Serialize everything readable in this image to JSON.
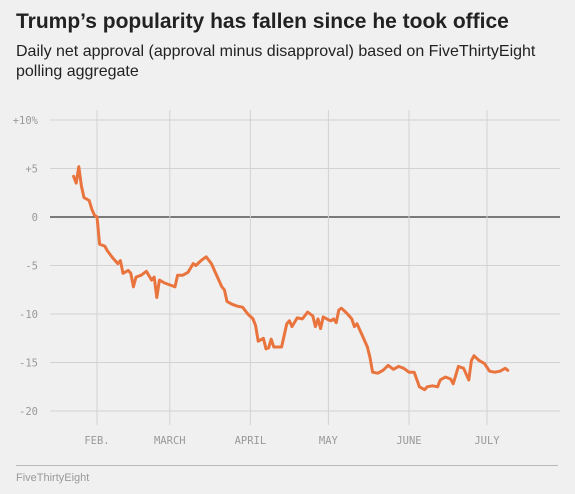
{
  "title": "Trump’s popularity has fallen since he took office",
  "subtitle": "Daily net approval (approval minus disapproval) based on FiveThirtyEight polling aggregate",
  "source": "FiveThirtyEight",
  "colors": {
    "line": "#e9743e",
    "zero_line": "#333333",
    "grid": "#d2d2d2",
    "background": "#f0f0f0"
  },
  "chart_data": {
    "type": "line",
    "title": "Trump’s popularity has fallen since he took office",
    "xlabel": "",
    "ylabel": "",
    "x_ticks": [
      "FEB.",
      "MARCH",
      "APRIL",
      "MAY",
      "JUNE",
      "JULY"
    ],
    "y_ticks": [
      "+10%",
      "+5",
      "0",
      "-5",
      "-10",
      "-15",
      "-20"
    ],
    "y_tick_values": [
      10,
      5,
      0,
      -5,
      -10,
      -15,
      -20
    ],
    "ylim": [
      -21,
      11
    ],
    "grid": true,
    "series": [
      {
        "values": [
          [
            "2017-01-23",
            4.2
          ],
          [
            "2017-01-24",
            3.5
          ],
          [
            "2017-01-25",
            5.2
          ],
          [
            "2017-01-26",
            3.2
          ],
          [
            "2017-01-27",
            2.0
          ],
          [
            "2017-01-29",
            1.7
          ],
          [
            "2017-01-30",
            0.8
          ],
          [
            "2017-01-31",
            0.2
          ],
          [
            "2017-02-01",
            0.0
          ],
          [
            "2017-02-02",
            -2.8
          ],
          [
            "2017-02-04",
            -3.0
          ],
          [
            "2017-02-05",
            -3.5
          ],
          [
            "2017-02-07",
            -4.2
          ],
          [
            "2017-02-09",
            -4.8
          ],
          [
            "2017-02-10",
            -4.5
          ],
          [
            "2017-02-11",
            -5.8
          ],
          [
            "2017-02-13",
            -5.5
          ],
          [
            "2017-02-14",
            -5.8
          ],
          [
            "2017-02-15",
            -7.2
          ],
          [
            "2017-02-16",
            -6.2
          ],
          [
            "2017-02-18",
            -6.0
          ],
          [
            "2017-02-20",
            -5.6
          ],
          [
            "2017-02-22",
            -6.5
          ],
          [
            "2017-02-23",
            -6.2
          ],
          [
            "2017-02-24",
            -8.3
          ],
          [
            "2017-02-25",
            -6.5
          ],
          [
            "2017-02-27",
            -6.8
          ],
          [
            "2017-03-01",
            -7.0
          ],
          [
            "2017-03-03",
            -7.2
          ],
          [
            "2017-03-04",
            -6.0
          ],
          [
            "2017-03-06",
            -6.0
          ],
          [
            "2017-03-08",
            -5.7
          ],
          [
            "2017-03-10",
            -4.8
          ],
          [
            "2017-03-11",
            -5.0
          ],
          [
            "2017-03-13",
            -4.5
          ],
          [
            "2017-03-15",
            -4.1
          ],
          [
            "2017-03-17",
            -4.8
          ],
          [
            "2017-03-19",
            -6.0
          ],
          [
            "2017-03-21",
            -7.2
          ],
          [
            "2017-03-22",
            -7.5
          ],
          [
            "2017-03-23",
            -8.7
          ],
          [
            "2017-03-25",
            -9.0
          ],
          [
            "2017-03-27",
            -9.2
          ],
          [
            "2017-03-29",
            -9.3
          ],
          [
            "2017-03-31",
            -10.0
          ],
          [
            "2017-04-02",
            -10.5
          ],
          [
            "2017-04-03",
            -11.2
          ],
          [
            "2017-04-04",
            -12.8
          ],
          [
            "2017-04-06",
            -12.5
          ],
          [
            "2017-04-07",
            -13.6
          ],
          [
            "2017-04-08",
            -13.5
          ],
          [
            "2017-04-09",
            -12.6
          ],
          [
            "2017-04-10",
            -13.4
          ],
          [
            "2017-04-13",
            -13.4
          ],
          [
            "2017-04-15",
            -11.0
          ],
          [
            "2017-04-16",
            -10.7
          ],
          [
            "2017-04-17",
            -11.3
          ],
          [
            "2017-04-19",
            -10.4
          ],
          [
            "2017-04-21",
            -10.5
          ],
          [
            "2017-04-23",
            -9.8
          ],
          [
            "2017-04-25",
            -10.2
          ],
          [
            "2017-04-26",
            -11.3
          ],
          [
            "2017-04-27",
            -10.5
          ],
          [
            "2017-04-28",
            -11.5
          ],
          [
            "2017-04-29",
            -10.3
          ],
          [
            "2017-05-01",
            -10.6
          ],
          [
            "2017-05-02",
            -10.7
          ],
          [
            "2017-05-03",
            -10.5
          ],
          [
            "2017-05-04",
            -10.9
          ],
          [
            "2017-05-05",
            -9.6
          ],
          [
            "2017-05-06",
            -9.4
          ],
          [
            "2017-05-08",
            -9.9
          ],
          [
            "2017-05-10",
            -10.5
          ],
          [
            "2017-05-11",
            -11.3
          ],
          [
            "2017-05-12",
            -11.0
          ],
          [
            "2017-05-14",
            -12.2
          ],
          [
            "2017-05-16",
            -13.4
          ],
          [
            "2017-05-17",
            -14.5
          ],
          [
            "2017-05-18",
            -16.0
          ],
          [
            "2017-05-20",
            -16.1
          ],
          [
            "2017-05-22",
            -15.8
          ],
          [
            "2017-05-24",
            -15.3
          ],
          [
            "2017-05-26",
            -15.7
          ],
          [
            "2017-05-28",
            -15.4
          ],
          [
            "2017-05-30",
            -15.6
          ],
          [
            "2017-06-01",
            -16.0
          ],
          [
            "2017-06-03",
            -16.0
          ],
          [
            "2017-06-05",
            -17.5
          ],
          [
            "2017-06-07",
            -17.8
          ],
          [
            "2017-06-08",
            -17.5
          ],
          [
            "2017-06-10",
            -17.4
          ],
          [
            "2017-06-12",
            -17.5
          ],
          [
            "2017-06-13",
            -16.8
          ],
          [
            "2017-06-15",
            -16.5
          ],
          [
            "2017-06-17",
            -16.7
          ],
          [
            "2017-06-18",
            -17.2
          ],
          [
            "2017-06-20",
            -15.4
          ],
          [
            "2017-06-22",
            -15.6
          ],
          [
            "2017-06-24",
            -16.8
          ],
          [
            "2017-06-25",
            -14.8
          ],
          [
            "2017-06-26",
            -14.3
          ],
          [
            "2017-06-28",
            -14.8
          ],
          [
            "2017-06-30",
            -15.1
          ],
          [
            "2017-07-02",
            -15.9
          ],
          [
            "2017-07-04",
            -16.0
          ],
          [
            "2017-07-06",
            -15.9
          ],
          [
            "2017-07-08",
            -15.6
          ],
          [
            "2017-07-09",
            -15.8
          ]
        ]
      }
    ]
  }
}
